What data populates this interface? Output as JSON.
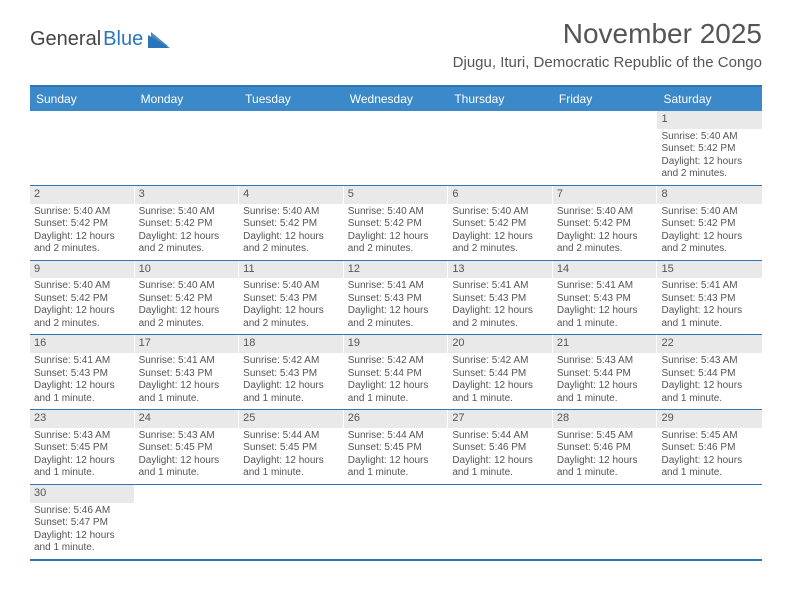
{
  "logo": {
    "general": "General",
    "blue": "Blue"
  },
  "title": "November 2025",
  "location": "Djugu, Ituri, Democratic Republic of the Congo",
  "weekdays": [
    "Sunday",
    "Monday",
    "Tuesday",
    "Wednesday",
    "Thursday",
    "Friday",
    "Saturday"
  ],
  "colors": {
    "header_bg": "#3b89c9",
    "border": "#2a76b8",
    "daynum_bg": "#e9e9e9",
    "text": "#555555"
  },
  "weeks": [
    [
      null,
      null,
      null,
      null,
      null,
      null,
      {
        "n": "1",
        "sr": "Sunrise: 5:40 AM",
        "ss": "Sunset: 5:42 PM",
        "dl": "Daylight: 12 hours and 2 minutes."
      }
    ],
    [
      {
        "n": "2",
        "sr": "Sunrise: 5:40 AM",
        "ss": "Sunset: 5:42 PM",
        "dl": "Daylight: 12 hours and 2 minutes."
      },
      {
        "n": "3",
        "sr": "Sunrise: 5:40 AM",
        "ss": "Sunset: 5:42 PM",
        "dl": "Daylight: 12 hours and 2 minutes."
      },
      {
        "n": "4",
        "sr": "Sunrise: 5:40 AM",
        "ss": "Sunset: 5:42 PM",
        "dl": "Daylight: 12 hours and 2 minutes."
      },
      {
        "n": "5",
        "sr": "Sunrise: 5:40 AM",
        "ss": "Sunset: 5:42 PM",
        "dl": "Daylight: 12 hours and 2 minutes."
      },
      {
        "n": "6",
        "sr": "Sunrise: 5:40 AM",
        "ss": "Sunset: 5:42 PM",
        "dl": "Daylight: 12 hours and 2 minutes."
      },
      {
        "n": "7",
        "sr": "Sunrise: 5:40 AM",
        "ss": "Sunset: 5:42 PM",
        "dl": "Daylight: 12 hours and 2 minutes."
      },
      {
        "n": "8",
        "sr": "Sunrise: 5:40 AM",
        "ss": "Sunset: 5:42 PM",
        "dl": "Daylight: 12 hours and 2 minutes."
      }
    ],
    [
      {
        "n": "9",
        "sr": "Sunrise: 5:40 AM",
        "ss": "Sunset: 5:42 PM",
        "dl": "Daylight: 12 hours and 2 minutes."
      },
      {
        "n": "10",
        "sr": "Sunrise: 5:40 AM",
        "ss": "Sunset: 5:42 PM",
        "dl": "Daylight: 12 hours and 2 minutes."
      },
      {
        "n": "11",
        "sr": "Sunrise: 5:40 AM",
        "ss": "Sunset: 5:43 PM",
        "dl": "Daylight: 12 hours and 2 minutes."
      },
      {
        "n": "12",
        "sr": "Sunrise: 5:41 AM",
        "ss": "Sunset: 5:43 PM",
        "dl": "Daylight: 12 hours and 2 minutes."
      },
      {
        "n": "13",
        "sr": "Sunrise: 5:41 AM",
        "ss": "Sunset: 5:43 PM",
        "dl": "Daylight: 12 hours and 2 minutes."
      },
      {
        "n": "14",
        "sr": "Sunrise: 5:41 AM",
        "ss": "Sunset: 5:43 PM",
        "dl": "Daylight: 12 hours and 1 minute."
      },
      {
        "n": "15",
        "sr": "Sunrise: 5:41 AM",
        "ss": "Sunset: 5:43 PM",
        "dl": "Daylight: 12 hours and 1 minute."
      }
    ],
    [
      {
        "n": "16",
        "sr": "Sunrise: 5:41 AM",
        "ss": "Sunset: 5:43 PM",
        "dl": "Daylight: 12 hours and 1 minute."
      },
      {
        "n": "17",
        "sr": "Sunrise: 5:41 AM",
        "ss": "Sunset: 5:43 PM",
        "dl": "Daylight: 12 hours and 1 minute."
      },
      {
        "n": "18",
        "sr": "Sunrise: 5:42 AM",
        "ss": "Sunset: 5:43 PM",
        "dl": "Daylight: 12 hours and 1 minute."
      },
      {
        "n": "19",
        "sr": "Sunrise: 5:42 AM",
        "ss": "Sunset: 5:44 PM",
        "dl": "Daylight: 12 hours and 1 minute."
      },
      {
        "n": "20",
        "sr": "Sunrise: 5:42 AM",
        "ss": "Sunset: 5:44 PM",
        "dl": "Daylight: 12 hours and 1 minute."
      },
      {
        "n": "21",
        "sr": "Sunrise: 5:43 AM",
        "ss": "Sunset: 5:44 PM",
        "dl": "Daylight: 12 hours and 1 minute."
      },
      {
        "n": "22",
        "sr": "Sunrise: 5:43 AM",
        "ss": "Sunset: 5:44 PM",
        "dl": "Daylight: 12 hours and 1 minute."
      }
    ],
    [
      {
        "n": "23",
        "sr": "Sunrise: 5:43 AM",
        "ss": "Sunset: 5:45 PM",
        "dl": "Daylight: 12 hours and 1 minute."
      },
      {
        "n": "24",
        "sr": "Sunrise: 5:43 AM",
        "ss": "Sunset: 5:45 PM",
        "dl": "Daylight: 12 hours and 1 minute."
      },
      {
        "n": "25",
        "sr": "Sunrise: 5:44 AM",
        "ss": "Sunset: 5:45 PM",
        "dl": "Daylight: 12 hours and 1 minute."
      },
      {
        "n": "26",
        "sr": "Sunrise: 5:44 AM",
        "ss": "Sunset: 5:45 PM",
        "dl": "Daylight: 12 hours and 1 minute."
      },
      {
        "n": "27",
        "sr": "Sunrise: 5:44 AM",
        "ss": "Sunset: 5:46 PM",
        "dl": "Daylight: 12 hours and 1 minute."
      },
      {
        "n": "28",
        "sr": "Sunrise: 5:45 AM",
        "ss": "Sunset: 5:46 PM",
        "dl": "Daylight: 12 hours and 1 minute."
      },
      {
        "n": "29",
        "sr": "Sunrise: 5:45 AM",
        "ss": "Sunset: 5:46 PM",
        "dl": "Daylight: 12 hours and 1 minute."
      }
    ],
    [
      {
        "n": "30",
        "sr": "Sunrise: 5:46 AM",
        "ss": "Sunset: 5:47 PM",
        "dl": "Daylight: 12 hours and 1 minute."
      },
      null,
      null,
      null,
      null,
      null,
      null
    ]
  ]
}
